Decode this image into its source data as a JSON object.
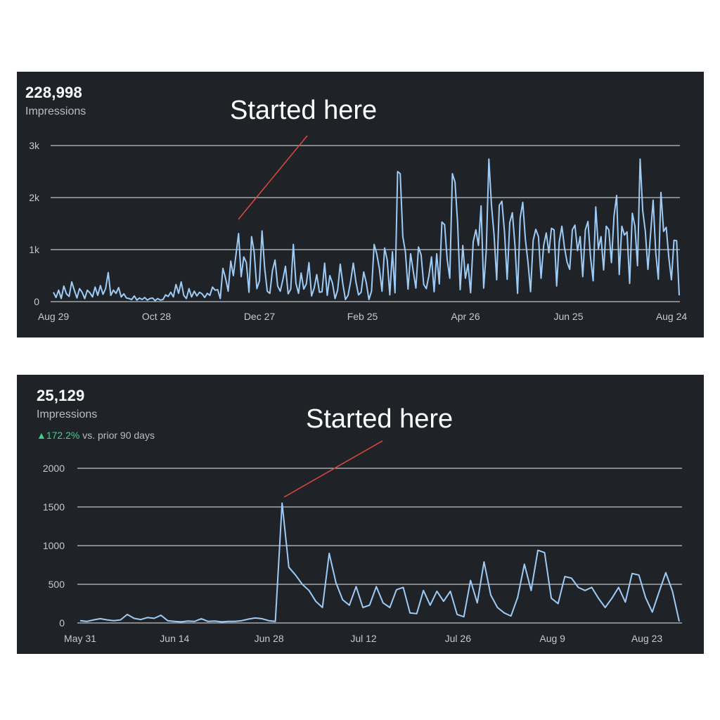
{
  "charts": [
    {
      "total": "228,998",
      "metric_label": "Impressions",
      "annotation": "Started here",
      "colors": {
        "line": "#9ecbf5",
        "arrow": "#e0483a",
        "grid": "#e6e8ea",
        "background": "#1f2328"
      }
    },
    {
      "total": "25,129",
      "metric_label": "Impressions",
      "change_value": "172.2%",
      "change_text": " vs. prior 90 days",
      "annotation": "Started here",
      "colors": {
        "line": "#9ecbf5",
        "arrow": "#e0483a",
        "grid": "#e6e8ea",
        "change": "#3fcf8e",
        "background": "#1f2328"
      }
    }
  ],
  "chart_data": [
    {
      "type": "line",
      "title": "Impressions",
      "series": [
        {
          "name": "Impressions",
          "values": [
            180,
            80,
            220,
            60,
            300,
            150,
            100,
            380,
            220,
            70,
            250,
            180,
            60,
            220,
            170,
            90,
            280,
            120,
            310,
            140,
            250,
            560,
            120,
            220,
            160,
            270,
            90,
            150,
            70,
            60,
            40,
            110,
            30,
            70,
            40,
            80,
            30,
            60,
            70,
            20,
            60,
            30,
            40,
            130,
            100,
            180,
            90,
            330,
            160,
            380,
            120,
            60,
            250,
            90,
            200,
            110,
            180,
            150,
            80,
            160,
            120,
            280,
            220,
            230,
            60,
            640,
            450,
            200,
            780,
            500,
            900,
            1310,
            480,
            860,
            750,
            180,
            1250,
            950,
            250,
            400,
            1360,
            650,
            200,
            160,
            600,
            800,
            300,
            200,
            420,
            680,
            150,
            240,
            1100,
            350,
            160,
            550,
            240,
            340,
            750,
            110,
            260,
            520,
            180,
            190,
            740,
            120,
            500,
            360,
            60,
            220,
            720,
            340,
            40,
            120,
            400,
            740,
            380,
            130,
            180,
            570,
            360,
            40,
            200,
            1100,
            920,
            640,
            200,
            1030,
            800,
            130,
            960,
            170,
            2500,
            2460,
            1250,
            950,
            240,
            920,
            580,
            260,
            1050,
            900,
            330,
            250,
            500,
            860,
            190,
            920,
            340,
            1530,
            1480,
            810,
            450,
            2460,
            2300,
            1520,
            230,
            1080,
            450,
            720,
            170,
            1150,
            1380,
            1080,
            1840,
            260,
            990,
            2740,
            1850,
            1280,
            420,
            1850,
            1930,
            1340,
            430,
            1520,
            1710,
            1080,
            160,
            1610,
            1910,
            1200,
            760,
            190,
            1180,
            1390,
            1250,
            450,
            1080,
            1320,
            940,
            1410,
            1380,
            300,
            1150,
            1450,
            1040,
            760,
            620,
            1380,
            1470,
            980,
            1250,
            480,
            1380,
            1540,
            850,
            400,
            1820,
            1020,
            1250,
            610,
            1450,
            1380,
            750,
            1650,
            2040,
            520,
            1450,
            1280,
            1340,
            350,
            1700,
            1450,
            690,
            2740,
            1750,
            1350,
            620,
            1290,
            1950,
            950,
            430,
            2100,
            1350,
            1430,
            850,
            420,
            1180,
            1170,
            120
          ]
        }
      ],
      "x_ticks": [
        "Aug 29",
        "Oct 28",
        "Dec 27",
        "Feb 25",
        "Apr 26",
        "Jun 25",
        "Aug 24"
      ],
      "y_ticks": [
        "0",
        "1k",
        "2k",
        "3k"
      ],
      "ylim": [
        0,
        3000
      ],
      "xlabel": "",
      "ylabel": ""
    },
    {
      "type": "line",
      "title": "Impressions",
      "series": [
        {
          "name": "Impressions",
          "values": [
            30,
            20,
            40,
            55,
            40,
            30,
            40,
            110,
            60,
            45,
            70,
            60,
            100,
            30,
            20,
            15,
            25,
            20,
            55,
            20,
            25,
            15,
            20,
            20,
            30,
            50,
            65,
            55,
            30,
            20,
            1550,
            720,
            620,
            500,
            420,
            280,
            200,
            900,
            520,
            300,
            230,
            470,
            200,
            230,
            470,
            260,
            200,
            430,
            460,
            130,
            120,
            420,
            230,
            410,
            280,
            410,
            110,
            80,
            550,
            260,
            790,
            360,
            200,
            130,
            90,
            330,
            760,
            420,
            940,
            910,
            320,
            250,
            600,
            580,
            460,
            420,
            460,
            320,
            200,
            320,
            460,
            270,
            640,
            620,
            330,
            140,
            400,
            650,
            410,
            20
          ]
        }
      ],
      "x_ticks": [
        "May 31",
        "Jun 14",
        "Jun 28",
        "Jul 12",
        "Jul 26",
        "Aug 9",
        "Aug 23"
      ],
      "y_ticks": [
        "0",
        "500",
        "1000",
        "1500",
        "2000"
      ],
      "ylim": [
        0,
        2000
      ],
      "xlabel": "",
      "ylabel": ""
    }
  ]
}
